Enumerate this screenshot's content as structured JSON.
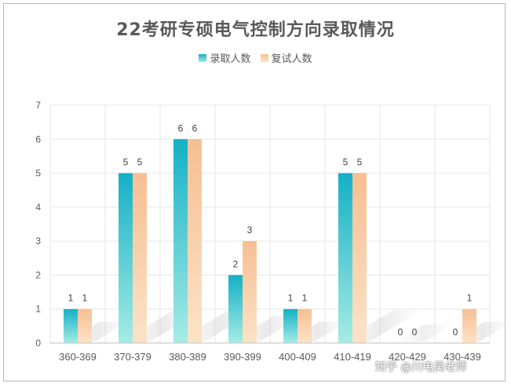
{
  "chart_data": {
    "type": "bar",
    "title": "22考研专硕电气控制方向录取情况",
    "categories": [
      "360-369",
      "370-379",
      "380-389",
      "390-399",
      "400-409",
      "410-419",
      "420-429",
      "430-439"
    ],
    "series": [
      {
        "name": "录取人数",
        "values": [
          1,
          5,
          6,
          2,
          1,
          5,
          0,
          0
        ],
        "color_top": "#14b0c6",
        "color_bottom": "#a6ece4"
      },
      {
        "name": "复试人数",
        "values": [
          1,
          5,
          6,
          3,
          1,
          5,
          0,
          1
        ],
        "color_top": "#f6bf93",
        "color_bottom": "#fbe3c7"
      }
    ],
    "yticks": [
      "0",
      "1",
      "2",
      "3",
      "4",
      "5",
      "6",
      "7"
    ],
    "ylim": [
      0,
      7
    ],
    "grid": true,
    "legend_position": "top-center"
  },
  "watermark": "知乎 @川电吴老师"
}
